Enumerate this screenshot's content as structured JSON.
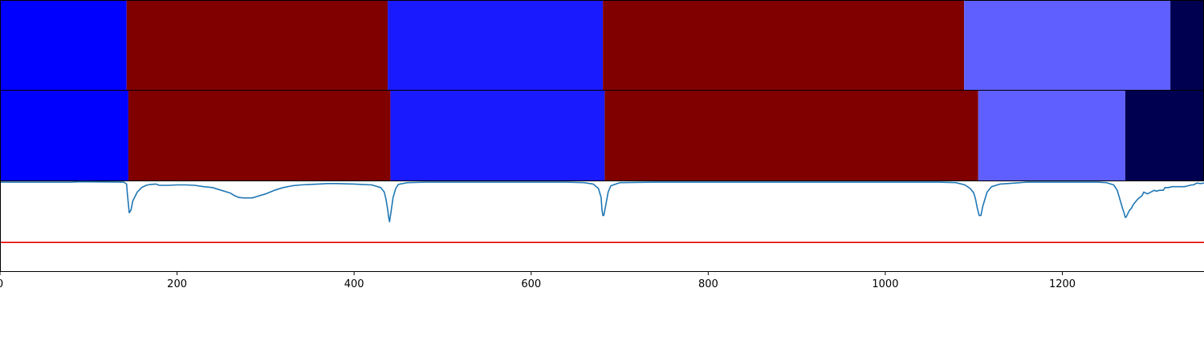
{
  "chart_data": {
    "type": "area",
    "xlim": [
      0,
      1360
    ],
    "x_ticks": [
      0,
      200,
      400,
      600,
      800,
      1000,
      1200
    ],
    "x_tick_labels": [
      "0",
      "200",
      "400",
      "600",
      "800",
      "1000",
      "1200"
    ],
    "segment_rows": [
      {
        "segments": [
          {
            "start": 0,
            "end": 143,
            "color": "#0000ff"
          },
          {
            "start": 143,
            "end": 438,
            "color": "#800000"
          },
          {
            "start": 438,
            "end": 681,
            "color": "#1a1aff"
          },
          {
            "start": 681,
            "end": 1089,
            "color": "#800000"
          },
          {
            "start": 1089,
            "end": 1322,
            "color": "#5f5fff"
          },
          {
            "start": 1322,
            "end": 1360,
            "color": "#000050"
          }
        ]
      },
      {
        "segments": [
          {
            "start": 0,
            "end": 145,
            "color": "#0000ff"
          },
          {
            "start": 145,
            "end": 441,
            "color": "#800000"
          },
          {
            "start": 441,
            "end": 683,
            "color": "#1a1aff"
          },
          {
            "start": 683,
            "end": 1105,
            "color": "#800000"
          },
          {
            "start": 1105,
            "end": 1271,
            "color": "#5f5fff"
          },
          {
            "start": 1271,
            "end": 1360,
            "color": "#000050"
          }
        ]
      }
    ],
    "signal": {
      "color": "#1f77b4",
      "ylim": [
        0,
        1
      ],
      "x": [
        0,
        80,
        90,
        140,
        143,
        144,
        146,
        148,
        150,
        155,
        160,
        165,
        170,
        176,
        180,
        190,
        200,
        210,
        220,
        230,
        240,
        250,
        260,
        265,
        270,
        275,
        280,
        285,
        290,
        300,
        310,
        320,
        330,
        340,
        350,
        360,
        370,
        380,
        400,
        420,
        430,
        434,
        436,
        438,
        439,
        440,
        442,
        444,
        447,
        450,
        460,
        480,
        500,
        520,
        560,
        600,
        640,
        660,
        670,
        676,
        679,
        680,
        681,
        682,
        684,
        687,
        690,
        700,
        740,
        800,
        860,
        900,
        960,
        1000,
        1060,
        1080,
        1090,
        1096,
        1100,
        1102,
        1104,
        1105,
        1106,
        1108,
        1110,
        1115,
        1120,
        1130,
        1160,
        1200,
        1240,
        1250,
        1258,
        1262,
        1265,
        1268,
        1270,
        1271,
        1272,
        1274,
        1276,
        1278,
        1280,
        1285,
        1290,
        1292,
        1296,
        1300,
        1304,
        1306,
        1310,
        1314,
        1316,
        1320,
        1324,
        1326,
        1330,
        1338,
        1342,
        1346,
        1348,
        1352,
        1356,
        1360
      ],
      "y": [
        0.99,
        0.99,
        0.995,
        0.99,
        0.97,
        0.85,
        0.65,
        0.68,
        0.78,
        0.88,
        0.93,
        0.955,
        0.965,
        0.97,
        0.955,
        0.955,
        0.96,
        0.96,
        0.955,
        0.94,
        0.93,
        0.9,
        0.87,
        0.84,
        0.82,
        0.815,
        0.815,
        0.815,
        0.83,
        0.86,
        0.9,
        0.93,
        0.95,
        0.96,
        0.965,
        0.97,
        0.975,
        0.975,
        0.97,
        0.96,
        0.93,
        0.88,
        0.8,
        0.68,
        0.6,
        0.55,
        0.68,
        0.82,
        0.92,
        0.965,
        0.985,
        0.99,
        0.99,
        0.99,
        0.99,
        0.99,
        0.99,
        0.985,
        0.97,
        0.92,
        0.82,
        0.68,
        0.62,
        0.62,
        0.72,
        0.88,
        0.95,
        0.985,
        0.99,
        0.99,
        0.99,
        0.99,
        0.99,
        0.99,
        0.99,
        0.985,
        0.96,
        0.92,
        0.87,
        0.8,
        0.7,
        0.66,
        0.62,
        0.62,
        0.72,
        0.88,
        0.94,
        0.97,
        0.99,
        0.99,
        0.99,
        0.985,
        0.96,
        0.9,
        0.8,
        0.7,
        0.64,
        0.6,
        0.6,
        0.64,
        0.68,
        0.7,
        0.74,
        0.8,
        0.84,
        0.88,
        0.86,
        0.88,
        0.9,
        0.89,
        0.9,
        0.9,
        0.93,
        0.93,
        0.94,
        0.94,
        0.94,
        0.94,
        0.95,
        0.96,
        0.96,
        0.98,
        0.975,
        0.98
      ]
    },
    "threshold": {
      "y": 0.32,
      "color": "#e50000"
    }
  }
}
